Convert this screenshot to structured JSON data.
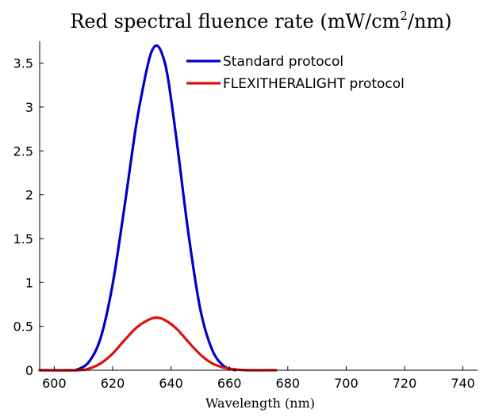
{
  "chart_data": {
    "type": "line",
    "title_main": "Red spectral fluence rate (mW/cm",
    "title_sup": "2",
    "title_tail": "/nm)",
    "xlabel": "Wavelength (nm)",
    "ylabel": "",
    "xlim": [
      595,
      745
    ],
    "ylim": [
      0,
      3.75
    ],
    "xticks": [
      600,
      620,
      640,
      660,
      680,
      700,
      720,
      740
    ],
    "yticks": [
      0,
      0.5,
      1,
      1.5,
      2,
      2.5,
      3,
      3.5
    ],
    "grid": false,
    "legend_position": "top-right",
    "series": [
      {
        "name": "Standard protocol",
        "color": "#0000cc",
        "x": [
          595,
          605,
          608,
          612,
          616,
          620,
          624,
          628,
          631,
          633,
          635,
          637,
          639,
          642,
          646,
          650,
          654,
          658,
          662
        ],
        "y": [
          0,
          0,
          0.01,
          0.1,
          0.38,
          0.98,
          1.85,
          2.78,
          3.32,
          3.6,
          3.7,
          3.6,
          3.32,
          2.6,
          1.55,
          0.7,
          0.24,
          0.05,
          0
        ]
      },
      {
        "name": "FLEXITHERALIGHT protocol",
        "color": "#dd1111",
        "x": [
          595,
          608,
          612,
          616,
          620,
          624,
          628,
          632,
          635,
          638,
          642,
          646,
          650,
          654,
          658,
          662,
          666,
          676
        ],
        "y": [
          0,
          0,
          0.02,
          0.08,
          0.19,
          0.34,
          0.48,
          0.57,
          0.6,
          0.57,
          0.47,
          0.32,
          0.18,
          0.08,
          0.03,
          0.01,
          0,
          0
        ]
      }
    ]
  }
}
